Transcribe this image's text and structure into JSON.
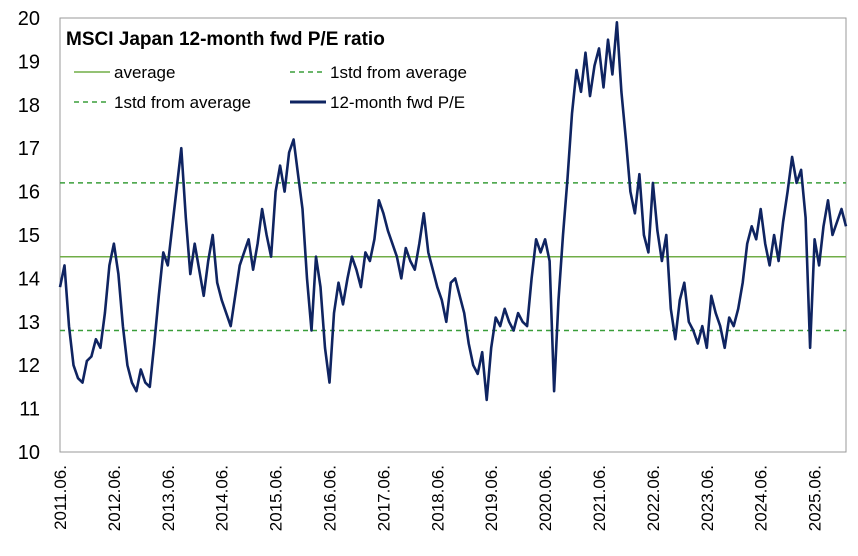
{
  "chart_data": {
    "type": "line",
    "title": "MSCI Japan 12-month fwd P/E ratio",
    "xlabel": "",
    "ylabel": "",
    "ylim": [
      10,
      20
    ],
    "yticks": [
      10,
      11,
      12,
      13,
      14,
      15,
      16,
      17,
      18,
      19,
      20
    ],
    "x_tick_labels": [
      "2011.06.",
      "2012.06.",
      "2013.06.",
      "2014.06.",
      "2015.06.",
      "2016.06.",
      "2017.06.",
      "2018.06.",
      "2019.06.",
      "2020.06.",
      "2021.06.",
      "2022.06.",
      "2023.06.",
      "2024.06.",
      "2025.06."
    ],
    "xlim": [
      "2011-06",
      "2026-01"
    ],
    "grid": false,
    "legend_position": "top-left",
    "reference_lines": [
      {
        "name": "average",
        "value": 14.5,
        "color": "#70AD47",
        "style": "solid"
      },
      {
        "name": "1std from average",
        "value": 16.2,
        "color": "#3A9E3A",
        "style": "dashed"
      },
      {
        "name": "1std from average",
        "value": 12.8,
        "color": "#3A9E3A",
        "style": "dashed"
      }
    ],
    "series": [
      {
        "name": "12-month fwd P/E",
        "color": "#0F2461",
        "points": [
          [
            "2011-06",
            13.8
          ],
          [
            "2011-07",
            14.3
          ],
          [
            "2011-08",
            12.9
          ],
          [
            "2011-09",
            12.0
          ],
          [
            "2011-10",
            11.7
          ],
          [
            "2011-11",
            11.6
          ],
          [
            "2011-12",
            12.1
          ],
          [
            "2012-01",
            12.2
          ],
          [
            "2012-02",
            12.6
          ],
          [
            "2012-03",
            12.4
          ],
          [
            "2012-04",
            13.2
          ],
          [
            "2012-05",
            14.3
          ],
          [
            "2012-06",
            14.8
          ],
          [
            "2012-07",
            14.1
          ],
          [
            "2012-08",
            12.9
          ],
          [
            "2012-09",
            12.0
          ],
          [
            "2012-10",
            11.6
          ],
          [
            "2012-11",
            11.4
          ],
          [
            "2012-12",
            11.9
          ],
          [
            "2013-01",
            11.6
          ],
          [
            "2013-02",
            11.5
          ],
          [
            "2013-03",
            12.5
          ],
          [
            "2013-04",
            13.6
          ],
          [
            "2013-05",
            14.6
          ],
          [
            "2013-06",
            14.3
          ],
          [
            "2013-07",
            15.2
          ],
          [
            "2013-08",
            16.1
          ],
          [
            "2013-09",
            17.0
          ],
          [
            "2013-10",
            15.4
          ],
          [
            "2013-11",
            14.1
          ],
          [
            "2013-12",
            14.8
          ],
          [
            "2014-01",
            14.2
          ],
          [
            "2014-02",
            13.6
          ],
          [
            "2014-03",
            14.4
          ],
          [
            "2014-04",
            15.0
          ],
          [
            "2014-05",
            13.9
          ],
          [
            "2014-06",
            13.5
          ],
          [
            "2014-07",
            13.2
          ],
          [
            "2014-08",
            12.9
          ],
          [
            "2014-09",
            13.6
          ],
          [
            "2014-10",
            14.3
          ],
          [
            "2014-11",
            14.6
          ],
          [
            "2014-12",
            14.9
          ],
          [
            "2015-01",
            14.2
          ],
          [
            "2015-02",
            14.8
          ],
          [
            "2015-03",
            15.6
          ],
          [
            "2015-04",
            15.0
          ],
          [
            "2015-05",
            14.5
          ],
          [
            "2015-06",
            16.0
          ],
          [
            "2015-07",
            16.6
          ],
          [
            "2015-08",
            16.0
          ],
          [
            "2015-09",
            16.9
          ],
          [
            "2015-10",
            17.2
          ],
          [
            "2015-11",
            16.4
          ],
          [
            "2015-12",
            15.6
          ],
          [
            "2016-01",
            14.0
          ],
          [
            "2016-02",
            12.8
          ],
          [
            "2016-03",
            14.5
          ],
          [
            "2016-04",
            13.8
          ],
          [
            "2016-05",
            12.4
          ],
          [
            "2016-06",
            11.6
          ],
          [
            "2016-07",
            13.2
          ],
          [
            "2016-08",
            13.9
          ],
          [
            "2016-09",
            13.4
          ],
          [
            "2016-10",
            14.0
          ],
          [
            "2016-11",
            14.5
          ],
          [
            "2016-12",
            14.2
          ],
          [
            "2017-01",
            13.8
          ],
          [
            "2017-02",
            14.6
          ],
          [
            "2017-03",
            14.4
          ],
          [
            "2017-04",
            14.9
          ],
          [
            "2017-05",
            15.8
          ],
          [
            "2017-06",
            15.5
          ],
          [
            "2017-07",
            15.1
          ],
          [
            "2017-08",
            14.8
          ],
          [
            "2017-09",
            14.5
          ],
          [
            "2017-10",
            14.0
          ],
          [
            "2017-11",
            14.7
          ],
          [
            "2017-12",
            14.4
          ],
          [
            "2018-01",
            14.2
          ],
          [
            "2018-02",
            14.8
          ],
          [
            "2018-03",
            15.5
          ],
          [
            "2018-04",
            14.6
          ],
          [
            "2018-05",
            14.2
          ],
          [
            "2018-06",
            13.8
          ],
          [
            "2018-07",
            13.5
          ],
          [
            "2018-08",
            13.0
          ],
          [
            "2018-09",
            13.9
          ],
          [
            "2018-10",
            14.0
          ],
          [
            "2018-11",
            13.6
          ],
          [
            "2018-12",
            13.2
          ],
          [
            "2019-01",
            12.5
          ],
          [
            "2019-02",
            12.0
          ],
          [
            "2019-03",
            11.8
          ],
          [
            "2019-04",
            12.3
          ],
          [
            "2019-05",
            11.2
          ],
          [
            "2019-06",
            12.4
          ],
          [
            "2019-07",
            13.1
          ],
          [
            "2019-08",
            12.9
          ],
          [
            "2019-09",
            13.3
          ],
          [
            "2019-10",
            13.0
          ],
          [
            "2019-11",
            12.8
          ],
          [
            "2019-12",
            13.2
          ],
          [
            "2020-01",
            13.0
          ],
          [
            "2020-02",
            12.9
          ],
          [
            "2020-03",
            14.0
          ],
          [
            "2020-04",
            14.9
          ],
          [
            "2020-05",
            14.6
          ],
          [
            "2020-06",
            14.9
          ],
          [
            "2020-07",
            14.4
          ],
          [
            "2020-08",
            11.4
          ],
          [
            "2020-09",
            13.5
          ],
          [
            "2020-10",
            15.0
          ],
          [
            "2020-11",
            16.3
          ],
          [
            "2020-12",
            17.8
          ],
          [
            "2021-01",
            18.8
          ],
          [
            "2021-02",
            18.3
          ],
          [
            "2021-03",
            19.2
          ],
          [
            "2021-04",
            18.2
          ],
          [
            "2021-05",
            18.9
          ],
          [
            "2021-06",
            19.3
          ],
          [
            "2021-07",
            18.4
          ],
          [
            "2021-08",
            19.5
          ],
          [
            "2021-09",
            18.7
          ],
          [
            "2021-10",
            19.9
          ],
          [
            "2021-11",
            18.3
          ],
          [
            "2021-12",
            17.2
          ],
          [
            "2022-01",
            16.0
          ],
          [
            "2022-02",
            15.5
          ],
          [
            "2022-03",
            16.4
          ],
          [
            "2022-04",
            15.0
          ],
          [
            "2022-05",
            14.6
          ],
          [
            "2022-06",
            16.2
          ],
          [
            "2022-07",
            15.1
          ],
          [
            "2022-08",
            14.4
          ],
          [
            "2022-09",
            15.0
          ],
          [
            "2022-10",
            13.3
          ],
          [
            "2022-11",
            12.6
          ],
          [
            "2022-12",
            13.5
          ],
          [
            "2023-01",
            13.9
          ],
          [
            "2023-02",
            13.0
          ],
          [
            "2023-03",
            12.8
          ],
          [
            "2023-04",
            12.5
          ],
          [
            "2023-05",
            12.9
          ],
          [
            "2023-06",
            12.4
          ],
          [
            "2023-07",
            13.6
          ],
          [
            "2023-08",
            13.2
          ],
          [
            "2023-09",
            12.9
          ],
          [
            "2023-10",
            12.4
          ],
          [
            "2023-11",
            13.1
          ],
          [
            "2023-12",
            12.9
          ],
          [
            "2024-01",
            13.3
          ],
          [
            "2024-02",
            13.9
          ],
          [
            "2024-03",
            14.8
          ],
          [
            "2024-04",
            15.2
          ],
          [
            "2024-05",
            14.9
          ],
          [
            "2024-06",
            15.6
          ],
          [
            "2024-07",
            14.8
          ],
          [
            "2024-08",
            14.3
          ],
          [
            "2024-09",
            15.0
          ],
          [
            "2024-10",
            14.4
          ],
          [
            "2024-11",
            15.3
          ],
          [
            "2024-12",
            16.0
          ],
          [
            "2025-01",
            16.8
          ],
          [
            "2025-02",
            16.2
          ],
          [
            "2025-03",
            16.5
          ],
          [
            "2025-04",
            15.4
          ],
          [
            "2025-05",
            12.4
          ],
          [
            "2025-06",
            14.9
          ],
          [
            "2025-07",
            14.3
          ],
          [
            "2025-08",
            15.2
          ],
          [
            "2025-09",
            15.8
          ],
          [
            "2025-10",
            15.0
          ],
          [
            "2025-11",
            15.3
          ],
          [
            "2025-12",
            15.6
          ],
          [
            "2026-01",
            15.2
          ]
        ]
      }
    ]
  }
}
